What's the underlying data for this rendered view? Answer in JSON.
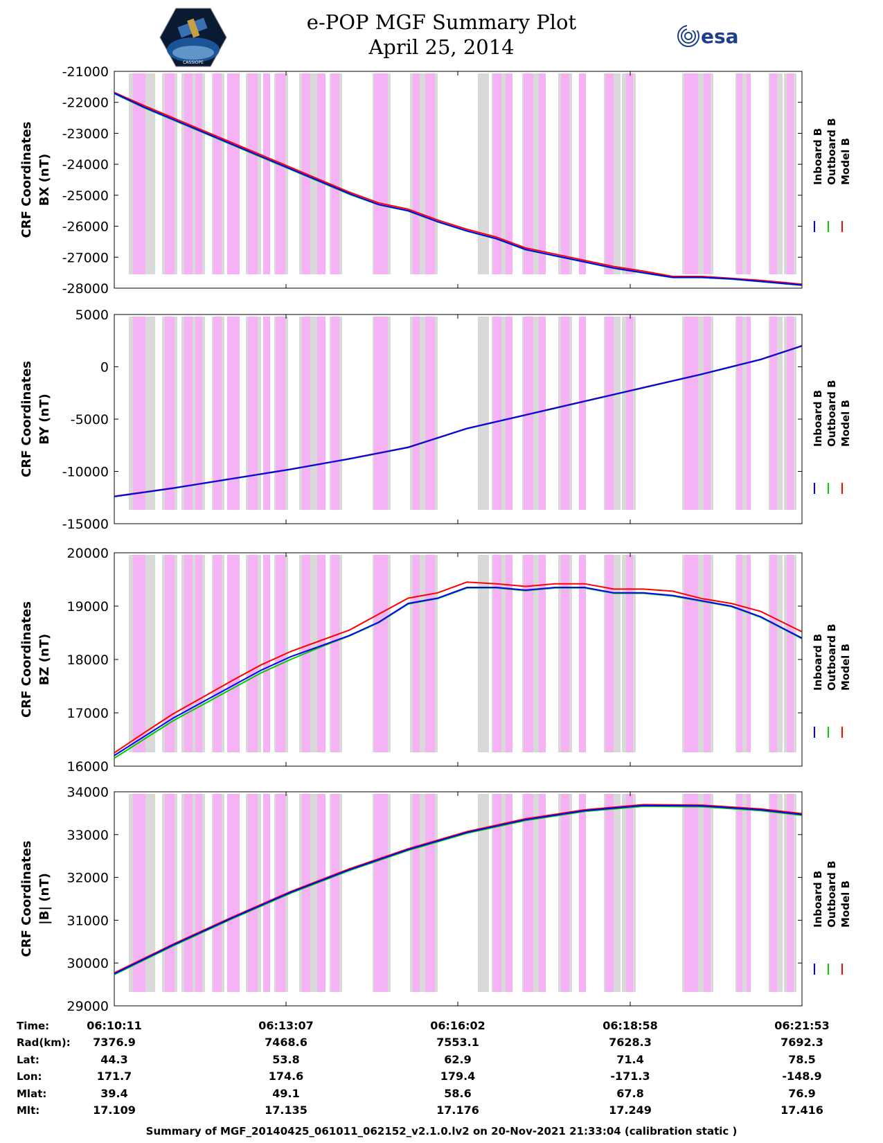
{
  "header": {
    "title_line1": "e-POP MGF Summary Plot",
    "title_line2": "April 25, 2014",
    "logo_left_text": "CASSIOPE",
    "logo_right_text": "esa"
  },
  "colors": {
    "inboard": "#0000ff",
    "outboard": "#00cc00",
    "model": "#ff0000",
    "shade_gray": "#d9d9d9",
    "shade_pink": "#f5b3f5"
  },
  "shading_note_type": "alternating gray (instrument data gaps) and magenta (flags) vertical bands",
  "x_axis": {
    "type": "time",
    "tick_times": [
      "06:10:11",
      "06:13:07",
      "06:16:02",
      "06:18:58",
      "06:21:53"
    ],
    "range": [
      "06:10:11",
      "06:21:53"
    ]
  },
  "chart_data": [
    {
      "type": "line",
      "ylabel": [
        "CRF Coordinates",
        "BX (nT)"
      ],
      "ylim": [
        -28000,
        -21000
      ],
      "yticks": [
        -21000,
        -22000,
        -23000,
        -24000,
        -25000,
        -26000,
        -27000,
        -28000
      ],
      "legend": [
        "Inboard B",
        "Outboard B",
        "Model B"
      ],
      "x_minutes": [
        0,
        0.5,
        1,
        1.5,
        2,
        2.5,
        3,
        3.5,
        4,
        4.5,
        5,
        5.5,
        6,
        6.5,
        7,
        7.5,
        8,
        8.5,
        9,
        9.5,
        10,
        10.5,
        11,
        11.7
      ],
      "series": [
        {
          "name": "Inboard B",
          "values": [
            -21700,
            -22150,
            -22550,
            -22950,
            -23350,
            -23750,
            -24150,
            -24550,
            -24950,
            -25300,
            -25500,
            -25850,
            -26150,
            -26400,
            -26750,
            -26950,
            -27150,
            -27350,
            -27500,
            -27650,
            -27650,
            -27700,
            -27780,
            -27900
          ]
        },
        {
          "name": "Outboard B",
          "values": [
            -21720,
            -22170,
            -22570,
            -22970,
            -23370,
            -23770,
            -24170,
            -24570,
            -24970,
            -25310,
            -25510,
            -25860,
            -26160,
            -26410,
            -26760,
            -26960,
            -27160,
            -27360,
            -27510,
            -27660,
            -27660,
            -27710,
            -27790,
            -27910
          ]
        },
        {
          "name": "Model B",
          "values": [
            -21680,
            -22100,
            -22500,
            -22900,
            -23300,
            -23700,
            -24100,
            -24500,
            -24900,
            -25250,
            -25450,
            -25800,
            -26100,
            -26350,
            -26700,
            -26900,
            -27100,
            -27300,
            -27450,
            -27620,
            -27620,
            -27680,
            -27750,
            -27870
          ]
        }
      ]
    },
    {
      "type": "line",
      "ylabel": [
        "CRF Coordinates",
        "BY (nT)"
      ],
      "ylim": [
        -15000,
        5000
      ],
      "yticks": [
        5000,
        0,
        -5000,
        -10000,
        -15000
      ],
      "legend": [
        "Inboard B",
        "Outboard B",
        "Model B"
      ],
      "x_minutes": [
        0,
        1,
        2,
        3,
        4,
        5,
        6,
        7,
        8,
        9,
        10,
        11,
        11.7
      ],
      "series": [
        {
          "name": "Inboard B",
          "values": [
            -12400,
            -11600,
            -10700,
            -9800,
            -8800,
            -7700,
            -5900,
            -4600,
            -3300,
            -2000,
            -700,
            700,
            2000
          ]
        },
        {
          "name": "Outboard B",
          "values": [
            -12420,
            -11620,
            -10720,
            -9820,
            -8820,
            -7720,
            -5920,
            -4620,
            -3320,
            -2020,
            -720,
            680,
            1980
          ]
        },
        {
          "name": "Model B",
          "values": [
            -12380,
            -11580,
            -10680,
            -9780,
            -8780,
            -7680,
            -5880,
            -4580,
            -3280,
            -1980,
            -680,
            720,
            2020
          ]
        }
      ]
    },
    {
      "type": "line",
      "ylabel": [
        "CRF Coordinates",
        "BZ (nT)"
      ],
      "ylim": [
        16000,
        20000
      ],
      "yticks": [
        20000,
        19000,
        18000,
        17000,
        16000
      ],
      "legend": [
        "Inboard B",
        "Outboard B",
        "Model B"
      ],
      "x_minutes": [
        0,
        0.5,
        1,
        1.5,
        2,
        2.5,
        3,
        3.5,
        4,
        4.5,
        5,
        5.5,
        6,
        6.5,
        7,
        7.5,
        8,
        8.5,
        9,
        9.5,
        10,
        10.5,
        11,
        11.7
      ],
      "series": [
        {
          "name": "Inboard B",
          "values": [
            16200,
            16550,
            16900,
            17200,
            17500,
            17800,
            18050,
            18250,
            18450,
            18700,
            19050,
            19150,
            19350,
            19350,
            19300,
            19350,
            19350,
            19250,
            19250,
            19200,
            19100,
            19000,
            18800,
            18400
          ]
        },
        {
          "name": "Outboard B",
          "values": [
            16150,
            16500,
            16850,
            17150,
            17450,
            17750,
            18000,
            18230,
            18440,
            18690,
            19040,
            19140,
            19340,
            19340,
            19290,
            19340,
            19340,
            19240,
            19240,
            19190,
            19090,
            18990,
            18790,
            18390
          ]
        },
        {
          "name": "Model B",
          "values": [
            16250,
            16620,
            16980,
            17290,
            17600,
            17900,
            18150,
            18350,
            18550,
            18850,
            19150,
            19250,
            19450,
            19420,
            19370,
            19420,
            19420,
            19320,
            19320,
            19280,
            19140,
            19050,
            18900,
            18520
          ]
        }
      ]
    },
    {
      "type": "line",
      "ylabel": [
        "CRF Coordinates",
        "|B| (nT)"
      ],
      "ylim": [
        29000,
        34000
      ],
      "yticks": [
        34000,
        33000,
        32000,
        31000,
        30000,
        29000
      ],
      "legend": [
        "Inboard B",
        "Outboard B",
        "Model B"
      ],
      "x_minutes": [
        0,
        1,
        2,
        3,
        4,
        5,
        6,
        7,
        8,
        9,
        10,
        11,
        11.7
      ],
      "series": [
        {
          "name": "Inboard B",
          "values": [
            29750,
            30420,
            31050,
            31650,
            32180,
            32650,
            33050,
            33350,
            33560,
            33680,
            33670,
            33580,
            33470
          ]
        },
        {
          "name": "Outboard B",
          "values": [
            29730,
            30400,
            31030,
            31630,
            32160,
            32630,
            33030,
            33330,
            33540,
            33660,
            33650,
            33560,
            33450
          ]
        },
        {
          "name": "Model B",
          "values": [
            29770,
            30440,
            31070,
            31670,
            32200,
            32670,
            33070,
            33370,
            33580,
            33700,
            33690,
            33600,
            33490
          ]
        }
      ]
    }
  ],
  "ephemeris": {
    "row_labels": [
      "Time:",
      "Rad(km):",
      "Lat:",
      "Lon:",
      "Mlat:",
      "Mlt:"
    ],
    "columns": [
      [
        "06:10:11",
        "7376.9",
        "44.3",
        "171.7",
        "39.4",
        "17.109"
      ],
      [
        "06:13:07",
        "7468.6",
        "53.8",
        "174.6",
        "49.1",
        "17.135"
      ],
      [
        "06:16:02",
        "7553.1",
        "62.9",
        "179.4",
        "58.6",
        "17.176"
      ],
      [
        "06:18:58",
        "7628.3",
        "71.4",
        "-171.3",
        "67.8",
        "17.249"
      ],
      [
        "06:21:53",
        "7692.3",
        "78.5",
        "-148.9",
        "76.9",
        "17.416"
      ]
    ]
  },
  "footer": {
    "text": "Summary of MGF_20140425_061011_062152_v2.1.0.lv2 on 20-Nov-2021 21:33:04 (calibration static )"
  }
}
